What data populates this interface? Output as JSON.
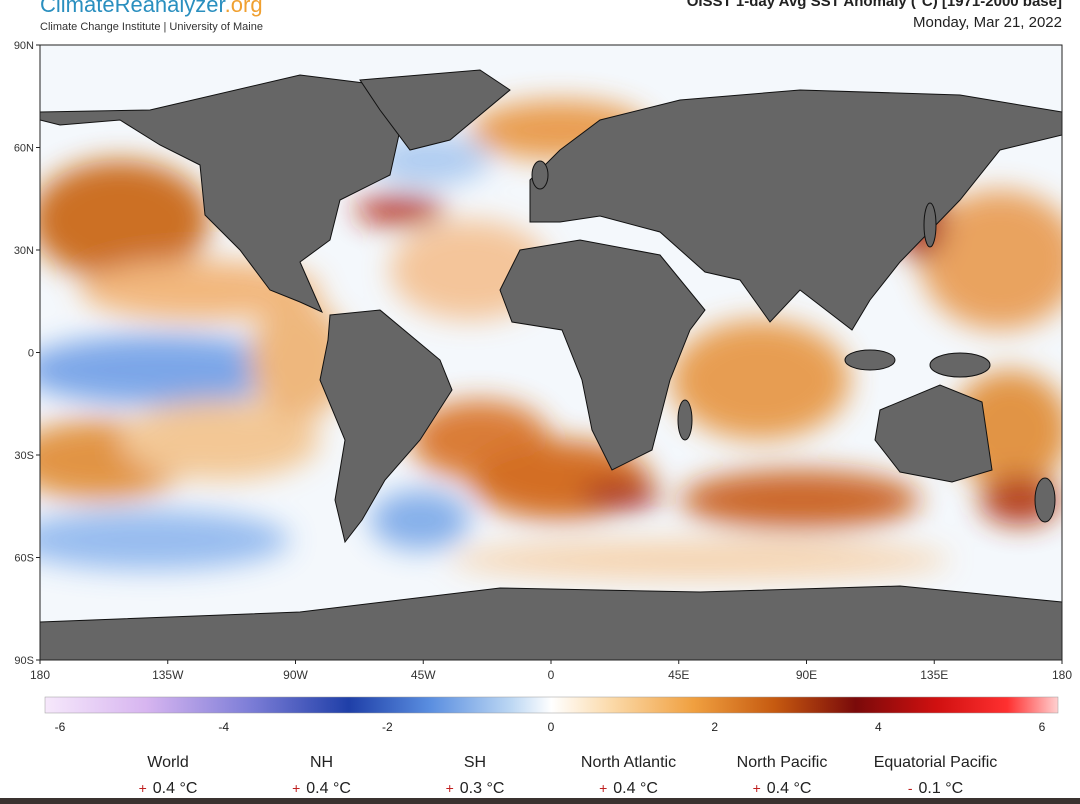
{
  "brand": {
    "name": "ClimateReanalyzer",
    "tld": ".org",
    "subtitle": "Climate Change Institute | University of Maine"
  },
  "map": {
    "title": "OISST 1-day Avg SST Anomaly (°C) [1971-2000 base]",
    "date": "Monday, Mar 21, 2022",
    "lat_labels": [
      "90N",
      "60N",
      "30N",
      "0",
      "30S",
      "60S",
      "90S"
    ],
    "lon_labels": [
      "180",
      "135W",
      "90W",
      "45W",
      "0",
      "45E",
      "90E",
      "135E",
      "180"
    ]
  },
  "colorbar": {
    "ticks": [
      -6,
      -4,
      -2,
      0,
      2,
      4,
      6
    ]
  },
  "stats": [
    {
      "name": "World",
      "sign": "+",
      "value": "0.4 °C"
    },
    {
      "name": "NH",
      "sign": "+",
      "value": "0.4 °C"
    },
    {
      "name": "SH",
      "sign": "+",
      "value": "0.3 °C"
    },
    {
      "name": "North Atlantic",
      "sign": "+",
      "value": "0.4 °C"
    },
    {
      "name": "North Pacific",
      "sign": "+",
      "value": "0.4 °C"
    },
    {
      "name": "Equatorial Pacific",
      "sign": "-",
      "value": "0.1 °C"
    }
  ]
}
